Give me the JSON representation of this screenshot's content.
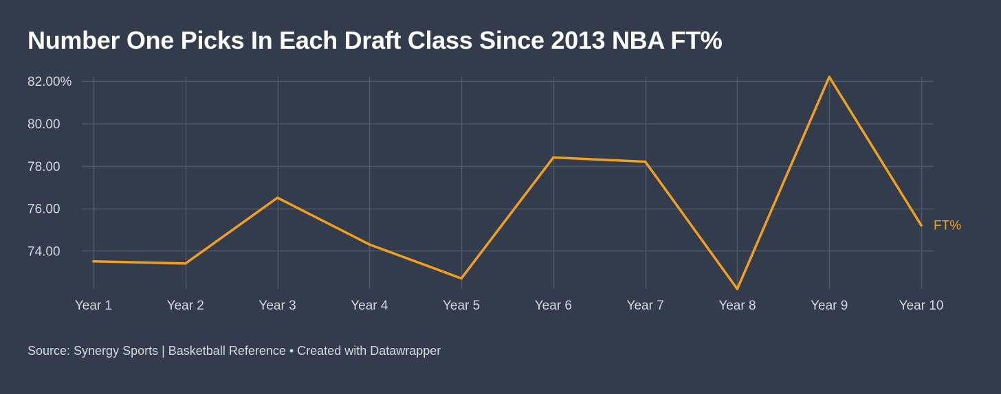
{
  "title": "Number One Picks In Each Draft Class Since 2013 NBA FT%",
  "source": "Source: Synergy Sports | Basketball Reference • Created with Datawrapper",
  "colors": {
    "background": "#333c4c",
    "grid": "#4f5968",
    "line": "#f0a01e",
    "text": "#d4d8de"
  },
  "chart_data": {
    "type": "line",
    "categories": [
      "Year 1",
      "Year 2",
      "Year 3",
      "Year 4",
      "Year 5",
      "Year 6",
      "Year 7",
      "Year 8",
      "Year 9",
      "Year 10"
    ],
    "series": [
      {
        "name": "FT%",
        "values": [
          73.5,
          73.4,
          76.5,
          74.3,
          72.7,
          78.4,
          78.2,
          72.2,
          82.2,
          75.2
        ]
      }
    ],
    "yticks": [
      "82.00%",
      "80.00",
      "78.00",
      "76.00",
      "74.00"
    ],
    "ytick_values": [
      82,
      80,
      78,
      76,
      74
    ],
    "ylim": [
      72.2,
      82.2
    ],
    "grid": true,
    "legend": "inline-right",
    "xlabel": "",
    "ylabel": ""
  }
}
